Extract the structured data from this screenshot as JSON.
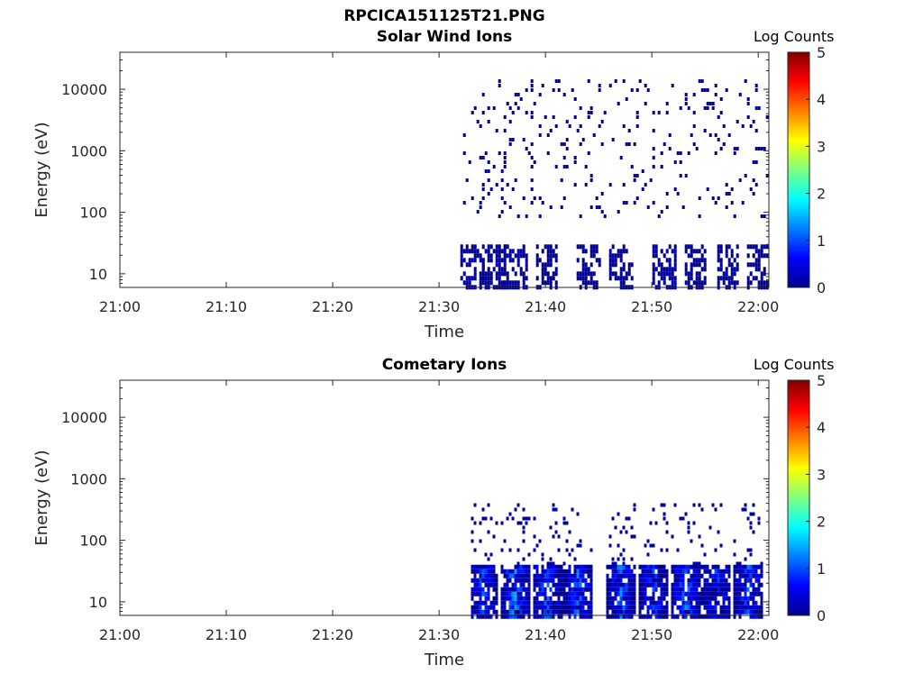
{
  "figure": {
    "title": "RPCICA151125T21.PNG"
  },
  "colorbar": {
    "label": "Log Counts",
    "ticks": [
      "0",
      "1",
      "2",
      "3",
      "4",
      "5"
    ],
    "range": [
      0,
      5
    ],
    "colormap": "jet"
  },
  "chart_data": [
    {
      "type": "heatmap",
      "title": "Solar Wind Ions",
      "xlabel": "Time",
      "ylabel": "Energy (eV)",
      "xticks": [
        "21:00",
        "21:10",
        "21:20",
        "21:30",
        "21:40",
        "21:50",
        "22:00"
      ],
      "yticks": [
        "10",
        "100",
        "1000",
        "10000"
      ],
      "xlim": [
        "21:00",
        "22:01"
      ],
      "ylim": [
        6,
        40000
      ],
      "yscale": "log",
      "colorbar_label": "Log Counts",
      "clim": [
        0,
        5
      ],
      "data_start": "21:32",
      "low_energy_bursts": [
        {
          "time": "21:33",
          "value": 0.3
        },
        {
          "time": "21:35",
          "value": 0.2
        },
        {
          "time": "21:37",
          "value": 0.3
        },
        {
          "time": "21:40",
          "value": 0.2
        },
        {
          "time": "21:44",
          "value": 0.2
        },
        {
          "time": "21:47",
          "value": 0.2
        },
        {
          "time": "21:51",
          "value": 0.3
        },
        {
          "time": "21:54",
          "value": 0.2
        },
        {
          "time": "21:57",
          "value": 0.3
        },
        {
          "time": "22:00",
          "value": 0.2
        }
      ]
    },
    {
      "type": "heatmap",
      "title": "Cometary Ions",
      "xlabel": "Time",
      "ylabel": "Energy (eV)",
      "xticks": [
        "21:00",
        "21:10",
        "21:20",
        "21:30",
        "21:40",
        "21:50",
        "22:00"
      ],
      "yticks": [
        "10",
        "100",
        "1000",
        "10000"
      ],
      "xlim": [
        "21:00",
        "22:01"
      ],
      "ylim": [
        6,
        40000
      ],
      "yscale": "log",
      "colorbar_label": "Log Counts",
      "clim": [
        0,
        5
      ],
      "data_start": "21:33",
      "low_energy_bursts": [
        {
          "time": "21:34",
          "value": 1.2
        },
        {
          "time": "21:37",
          "value": 1.6
        },
        {
          "time": "21:40",
          "value": 1.3
        },
        {
          "time": "21:43",
          "value": 1.4
        },
        {
          "time": "21:47",
          "value": 1.5
        },
        {
          "time": "21:50",
          "value": 1.2
        },
        {
          "time": "21:53",
          "value": 1.5
        },
        {
          "time": "21:56",
          "value": 1.1
        },
        {
          "time": "21:59",
          "value": 1.3
        }
      ]
    }
  ]
}
